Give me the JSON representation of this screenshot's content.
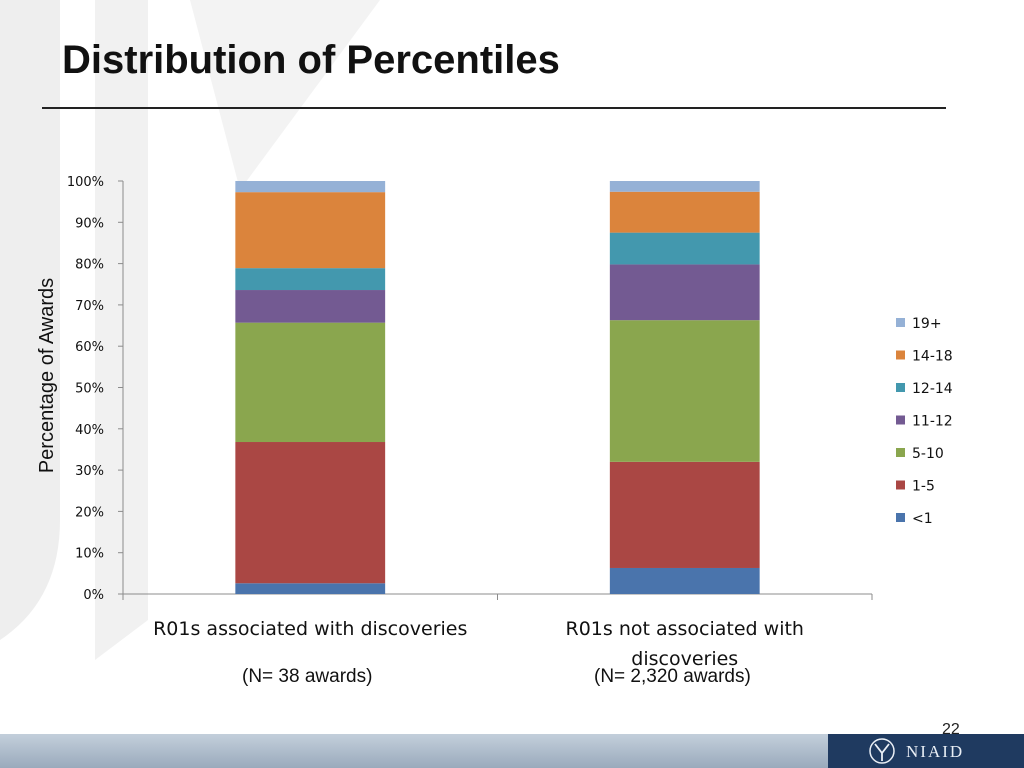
{
  "slide": {
    "title": "Distribution of Percentiles",
    "page_number": "22",
    "logo_text": "NIAID",
    "n_labels": [
      "(N= 38 awards)",
      "(N= 2,320 awards)"
    ]
  },
  "colors": {
    "<1": "#4a74ac",
    "1-5": "#aa4744",
    "5-10": "#8aa64e",
    "11-12": "#735a92",
    "12-14": "#4398ae",
    "14-18": "#db843c",
    "19+": "#95b1d6"
  },
  "chart_data": {
    "type": "bar",
    "stacked": true,
    "percent": true,
    "ylabel": "Percentage of Awards",
    "xlabel": "",
    "ylim": [
      0,
      100
    ],
    "yticks": [
      "0%",
      "10%",
      "20%",
      "30%",
      "40%",
      "50%",
      "60%",
      "70%",
      "80%",
      "90%",
      "100%"
    ],
    "categories": [
      [
        "R01s associated with discoveries"
      ],
      [
        "R01s not associated with",
        "discoveries"
      ]
    ],
    "legend_position": "right",
    "series": [
      {
        "name": "<1",
        "values": [
          2.6,
          6.3
        ]
      },
      {
        "name": "1-5",
        "values": [
          34.2,
          25.7
        ]
      },
      {
        "name": "5-10",
        "values": [
          28.9,
          34.3
        ]
      },
      {
        "name": "11-12",
        "values": [
          7.9,
          13.5
        ]
      },
      {
        "name": "12-14",
        "values": [
          5.3,
          7.7
        ]
      },
      {
        "name": "14-18",
        "values": [
          18.4,
          9.9
        ]
      },
      {
        "name": "19+",
        "values": [
          2.7,
          2.6
        ]
      }
    ]
  }
}
